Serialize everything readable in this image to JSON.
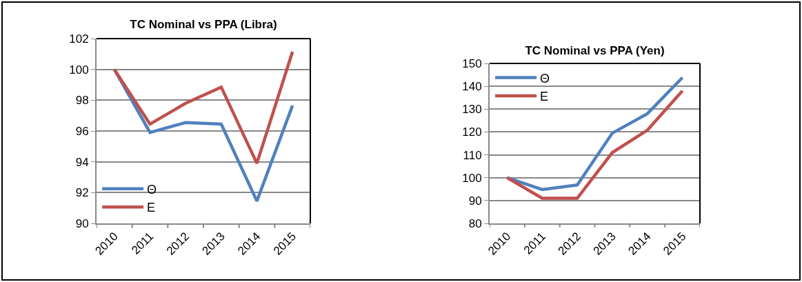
{
  "chart_data": [
    {
      "type": "line",
      "title": "TC Nominal vs PPA (Libra)",
      "categories": [
        "2010",
        "2011",
        "2012",
        "2013",
        "2014",
        "2015"
      ],
      "series": [
        {
          "name": "Θ",
          "color": "#4f81bd",
          "values": [
            100,
            95.9,
            96.55,
            96.45,
            91.45,
            97.65
          ]
        },
        {
          "name": "E",
          "color": "#c0504d",
          "values": [
            100,
            96.45,
            97.8,
            98.85,
            93.9,
            101.15
          ]
        }
      ],
      "ylim": [
        90,
        102
      ],
      "yticks": [
        90,
        92,
        94,
        96,
        98,
        100,
        102
      ],
      "grid": "y",
      "legend": "bottom left",
      "marker": "none",
      "line_style": "solid"
    },
    {
      "type": "line",
      "title": "TC Nominal vs PPA (Yen)",
      "categories": [
        "2010",
        "2011",
        "2012",
        "2013",
        "2014",
        "2015"
      ],
      "series": [
        {
          "name": "Θ",
          "color": "#4f81bd",
          "values": [
            100,
            94.8,
            96.8,
            119.5,
            128,
            143.8
          ]
        },
        {
          "name": "E",
          "color": "#c0504d",
          "values": [
            100,
            91,
            91,
            111,
            120.8,
            138
          ]
        }
      ],
      "ylim": [
        80,
        150
      ],
      "yticks": [
        80,
        90,
        100,
        110,
        120,
        130,
        140,
        150
      ],
      "grid": "y",
      "legend": "top left",
      "marker": "none",
      "line_style": "solid"
    }
  ]
}
